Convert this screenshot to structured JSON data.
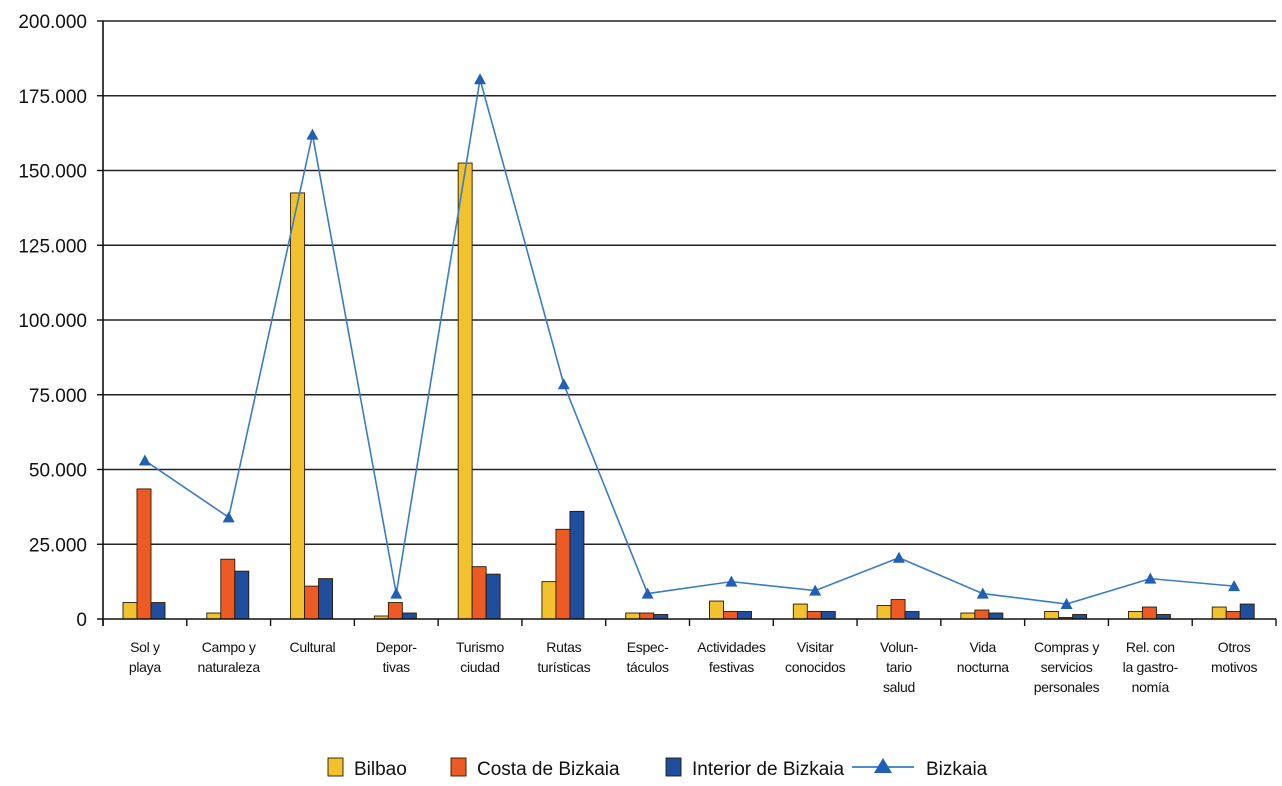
{
  "chart_data": {
    "type": "bar",
    "categories": [
      [
        "Sol y",
        "playa"
      ],
      [
        "Campo y",
        "naturaleza"
      ],
      [
        "Cultural"
      ],
      [
        "Depor-",
        "tivas"
      ],
      [
        "Turismo",
        "ciudad"
      ],
      [
        "Rutas",
        "turísticas"
      ],
      [
        "Espec-",
        "táculos"
      ],
      [
        "Actividades",
        "festivas"
      ],
      [
        "Visitar",
        "conocidos"
      ],
      [
        "Volun-",
        "tario",
        "salud"
      ],
      [
        "Vida",
        "nocturna"
      ],
      [
        "Compras y",
        "servicios",
        "personales"
      ],
      [
        "Rel. con",
        "la gastro-",
        "nomía"
      ],
      [
        "Otros",
        "motivos"
      ]
    ],
    "series": [
      {
        "name": "Bilbao",
        "type": "bar",
        "color": "#f2c12e",
        "values": [
          5500,
          2000,
          142500,
          1000,
          152500,
          12500,
          2000,
          6000,
          5000,
          4500,
          2000,
          2500,
          2500,
          4000
        ]
      },
      {
        "name": "Costa de Bizkaia",
        "type": "bar",
        "color": "#ee5a24",
        "values": [
          43500,
          20000,
          11000,
          5500,
          17500,
          30000,
          2000,
          2500,
          2500,
          6500,
          3000,
          500,
          4000,
          2500
        ]
      },
      {
        "name": "Interior de Bizkaia",
        "type": "bar",
        "color": "#1f4e9e",
        "values": [
          5500,
          16000,
          13500,
          2000,
          15000,
          36000,
          1500,
          2500,
          2500,
          2500,
          2000,
          1500,
          1500,
          5000
        ]
      },
      {
        "name": "Bizkaia",
        "type": "line",
        "color": "#3a7cc4",
        "values": [
          53000,
          34000,
          162000,
          8500,
          180500,
          78500,
          8500,
          12500,
          9500,
          20500,
          8500,
          5000,
          13500,
          11000
        ]
      }
    ],
    "yticks": [
      "0",
      "25.000",
      "50.000",
      "75.000",
      "100.000",
      "125.000",
      "150.000",
      "175.000",
      "200.000"
    ],
    "ylim": [
      0,
      200000
    ],
    "grid": true,
    "legend_position": "bottom"
  }
}
